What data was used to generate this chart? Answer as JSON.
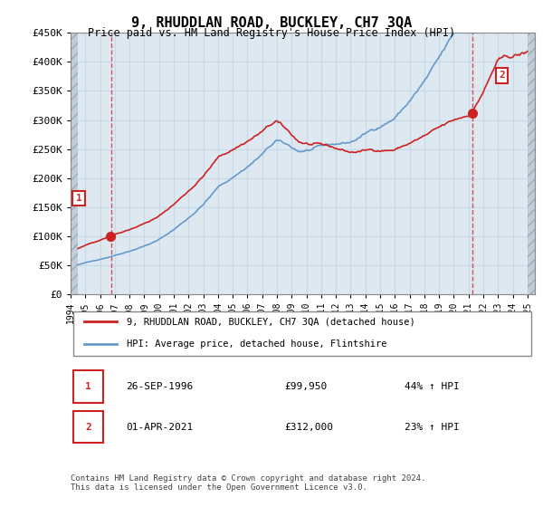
{
  "title": "9, RHUDDLAN ROAD, BUCKLEY, CH7 3QA",
  "subtitle": "Price paid vs. HM Land Registry's House Price Index (HPI)",
  "legend_line1": "9, RHUDDLAN ROAD, BUCKLEY, CH7 3QA (detached house)",
  "legend_line2": "HPI: Average price, detached house, Flintshire",
  "sale1_date": "26-SEP-1996",
  "sale1_price": 99950,
  "sale1_hpi_pct": "44% ↑ HPI",
  "sale2_date": "01-APR-2021",
  "sale2_price": 312000,
  "sale2_hpi_pct": "23% ↑ HPI",
  "footer": "Contains HM Land Registry data © Crown copyright and database right 2024.\nThis data is licensed under the Open Government Licence v3.0.",
  "xmin": 1994.0,
  "xmax": 2025.5,
  "ymin": 0,
  "ymax": 450000,
  "sale1_x": 1996.75,
  "sale2_x": 2021.25,
  "hpi_color": "#6699cc",
  "price_color": "#cc2222",
  "grid_color": "#c8d8e8",
  "bg_color": "#dde8f0",
  "hatch_color": "#c0cdd8",
  "marker_box_color": "#cc2222"
}
